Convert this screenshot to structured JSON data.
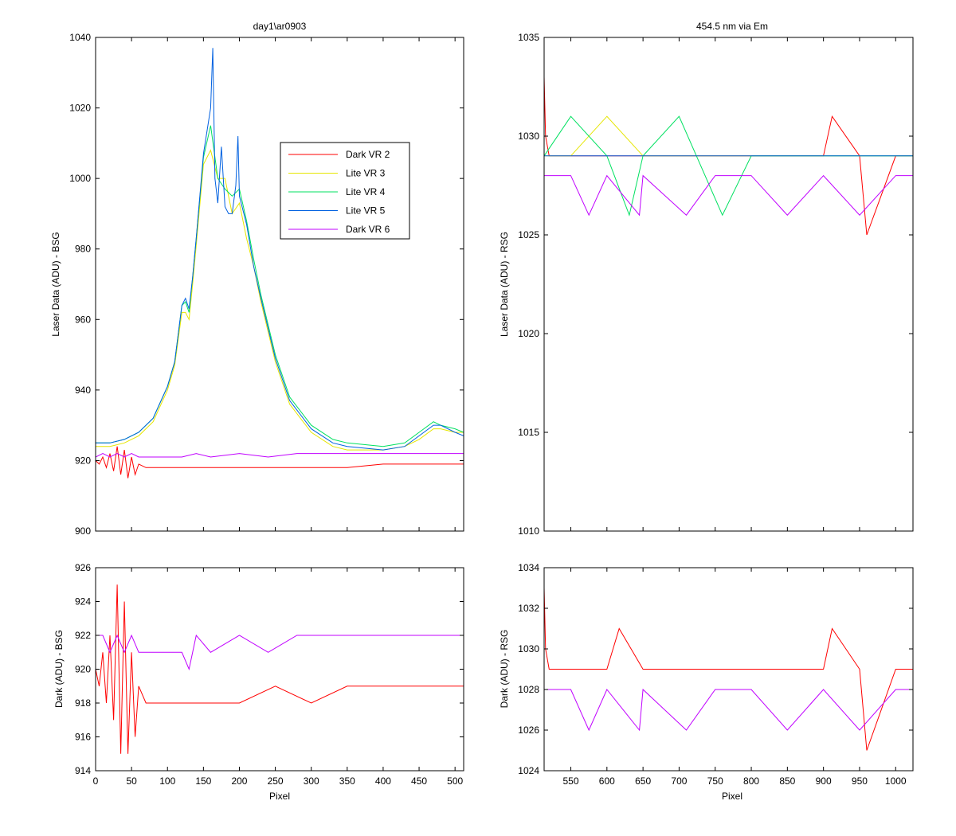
{
  "chart_data": [
    {
      "id": "top_left",
      "type": "line",
      "title": "day1\\ar0903",
      "xlabel": "",
      "ylabel": "Laser Data (ADU) - BSG",
      "xlim": [
        0,
        512
      ],
      "ylim": [
        900,
        1040
      ],
      "xticks": [
        0,
        50,
        100,
        150,
        200,
        250,
        300,
        350,
        400,
        450,
        500
      ],
      "xtick_labels_shown": false,
      "yticks": [
        900,
        920,
        940,
        960,
        980,
        1000,
        1020,
        1040
      ],
      "grid": false,
      "legend": {
        "placement": "upper-middle-right",
        "entries": [
          "Dark VR 2",
          "Lite VR 3",
          "Lite VR 4",
          "Lite VR 5",
          "Dark VR 6"
        ]
      },
      "series": [
        {
          "name": "Dark VR 2",
          "color": "#ff0000",
          "x": [
            0,
            5,
            10,
            15,
            20,
            25,
            30,
            35,
            40,
            45,
            50,
            55,
            60,
            70,
            80,
            100,
            150,
            200,
            250,
            300,
            350,
            400,
            450,
            500,
            512
          ],
          "y": [
            920,
            919,
            921,
            918,
            922,
            917,
            924,
            916,
            923,
            915,
            921,
            916,
            919,
            918,
            918,
            918,
            918,
            918,
            918,
            918,
            918,
            919,
            919,
            919,
            919
          ]
        },
        {
          "name": "Lite VR 3",
          "color": "#e6e600",
          "x": [
            0,
            20,
            40,
            60,
            80,
            100,
            110,
            120,
            125,
            130,
            135,
            140,
            150,
            160,
            170,
            180,
            190,
            200,
            210,
            220,
            230,
            250,
            270,
            300,
            330,
            350,
            400,
            430,
            450,
            470,
            480,
            500,
            512
          ],
          "y": [
            924,
            924,
            925,
            927,
            931,
            940,
            947,
            962,
            962,
            960,
            970,
            981,
            1004,
            1008,
            1000,
            1000,
            990,
            993,
            983,
            975,
            965,
            948,
            936,
            928,
            924,
            923,
            923,
            924,
            926,
            929,
            929,
            928,
            928
          ]
        },
        {
          "name": "Lite VR 4",
          "color": "#00e060",
          "x": [
            0,
            20,
            40,
            60,
            80,
            100,
            110,
            120,
            125,
            130,
            135,
            140,
            150,
            160,
            170,
            180,
            190,
            200,
            210,
            220,
            230,
            250,
            270,
            300,
            330,
            350,
            400,
            430,
            450,
            470,
            480,
            500,
            512
          ],
          "y": [
            925,
            925,
            926,
            928,
            932,
            941,
            948,
            964,
            965,
            962,
            972,
            983,
            1006,
            1015,
            1000,
            997,
            995,
            997,
            988,
            977,
            967,
            950,
            938,
            930,
            926,
            925,
            924,
            925,
            928,
            931,
            930,
            929,
            928
          ]
        },
        {
          "name": "Lite VR 5",
          "color": "#0060e0",
          "x": [
            0,
            20,
            40,
            60,
            80,
            100,
            110,
            120,
            125,
            130,
            135,
            140,
            150,
            160,
            163,
            166,
            170,
            175,
            180,
            185,
            190,
            195,
            198,
            200,
            210,
            220,
            230,
            250,
            270,
            300,
            330,
            350,
            400,
            430,
            450,
            470,
            480,
            500,
            512
          ],
          "y": [
            925,
            925,
            926,
            928,
            932,
            941,
            948,
            964,
            966,
            963,
            972,
            983,
            1007,
            1020,
            1037,
            1000,
            993,
            1009,
            992,
            990,
            990,
            998,
            1012,
            995,
            987,
            975,
            966,
            949,
            937,
            929,
            925,
            924,
            923,
            924,
            927,
            930,
            930,
            928,
            927
          ]
        },
        {
          "name": "Dark VR 6",
          "color": "#c000ff",
          "x": [
            0,
            10,
            20,
            30,
            40,
            50,
            60,
            80,
            100,
            120,
            140,
            160,
            200,
            240,
            280,
            320,
            360,
            400,
            440,
            470,
            500,
            512
          ],
          "y": [
            921,
            922,
            921,
            922,
            921,
            922,
            921,
            921,
            921,
            921,
            922,
            921,
            922,
            921,
            922,
            922,
            922,
            922,
            922,
            922,
            922,
            922
          ]
        }
      ]
    },
    {
      "id": "top_right",
      "type": "line",
      "title": "454.5 nm via Em",
      "xlabel": "",
      "ylabel": "Laser Data (ADU) - RSG",
      "xlim": [
        513,
        1024
      ],
      "ylim": [
        1010,
        1035
      ],
      "xticks": [
        550,
        600,
        650,
        700,
        750,
        800,
        850,
        900,
        950,
        1000
      ],
      "xtick_labels_shown": false,
      "yticks": [
        1010,
        1015,
        1020,
        1025,
        1030,
        1035
      ],
      "grid": false,
      "series": [
        {
          "name": "Dark VR 2",
          "color": "#ff0000",
          "x": [
            513,
            515,
            520,
            560,
            600,
            650,
            700,
            750,
            800,
            850,
            900,
            912,
            950,
            960,
            1000,
            1024
          ],
          "y": [
            1033,
            1030,
            1029,
            1029,
            1029,
            1029,
            1029,
            1029,
            1029,
            1029,
            1029,
            1031,
            1029,
            1025,
            1029,
            1029
          ]
        },
        {
          "name": "Lite VR 3",
          "color": "#e6e600",
          "x": [
            513,
            550,
            600,
            650,
            700,
            750,
            800,
            850,
            900,
            950,
            1000,
            1024
          ],
          "y": [
            1029,
            1029,
            1031,
            1029,
            1029,
            1029,
            1029,
            1029,
            1029,
            1029,
            1029,
            1029
          ]
        },
        {
          "name": "Lite VR 4",
          "color": "#00e060",
          "x": [
            513,
            550,
            600,
            631,
            650,
            700,
            760,
            800,
            850,
            900,
            950,
            1000,
            1024
          ],
          "y": [
            1029,
            1031,
            1029,
            1026,
            1029,
            1031,
            1026,
            1029,
            1029,
            1029,
            1029,
            1029,
            1029
          ]
        },
        {
          "name": "Lite VR 5",
          "color": "#0060e0",
          "x": [
            513,
            550,
            600,
            650,
            700,
            750,
            800,
            850,
            900,
            950,
            1000,
            1024
          ],
          "y": [
            1029,
            1029,
            1029,
            1029,
            1029,
            1029,
            1029,
            1029,
            1029,
            1029,
            1029,
            1029
          ]
        },
        {
          "name": "Dark VR 6",
          "color": "#c000ff",
          "x": [
            513,
            550,
            575,
            600,
            645,
            650,
            710,
            750,
            800,
            850,
            900,
            950,
            1000,
            1024
          ],
          "y": [
            1028,
            1028,
            1026,
            1028,
            1026,
            1028,
            1026,
            1028,
            1028,
            1026,
            1028,
            1026,
            1028,
            1028
          ]
        }
      ]
    },
    {
      "id": "bottom_left",
      "type": "line",
      "title": "",
      "xlabel": "Pixel",
      "ylabel": "Dark (ADU) - BSG",
      "xlim": [
        0,
        512
      ],
      "ylim": [
        914,
        926
      ],
      "xticks": [
        0,
        50,
        100,
        150,
        200,
        250,
        300,
        350,
        400,
        450,
        500
      ],
      "yticks": [
        914,
        916,
        918,
        920,
        922,
        924,
        926
      ],
      "grid": false,
      "series": [
        {
          "name": "Dark VR 2",
          "color": "#ff0000",
          "x": [
            0,
            5,
            10,
            15,
            20,
            25,
            30,
            35,
            40,
            45,
            50,
            55,
            60,
            70,
            80,
            100,
            150,
            200,
            250,
            300,
            350,
            400,
            450,
            480,
            500,
            512
          ],
          "y": [
            920,
            919,
            921,
            918,
            922,
            917,
            925,
            915,
            924,
            915,
            921,
            916,
            919,
            918,
            918,
            918,
            918,
            918,
            919,
            918,
            919,
            919,
            919,
            919,
            919,
            919
          ]
        },
        {
          "name": "Dark VR 6",
          "color": "#c000ff",
          "x": [
            0,
            10,
            20,
            30,
            40,
            50,
            60,
            80,
            100,
            120,
            130,
            140,
            160,
            200,
            240,
            280,
            320,
            360,
            400,
            440,
            470,
            500,
            512
          ],
          "y": [
            922,
            922,
            921,
            922,
            921,
            922,
            921,
            921,
            921,
            921,
            920,
            922,
            921,
            922,
            921,
            922,
            922,
            922,
            922,
            922,
            922,
            922,
            922
          ]
        }
      ]
    },
    {
      "id": "bottom_right",
      "type": "line",
      "title": "",
      "xlabel": "Pixel",
      "ylabel": "Dark (ADU) - RSG",
      "xlim": [
        513,
        1024
      ],
      "ylim": [
        1024,
        1034
      ],
      "xticks": [
        550,
        600,
        650,
        700,
        750,
        800,
        850,
        900,
        950,
        1000
      ],
      "yticks": [
        1024,
        1026,
        1028,
        1030,
        1032,
        1034
      ],
      "grid": false,
      "series": [
        {
          "name": "Dark VR 2",
          "color": "#ff0000",
          "x": [
            513,
            515,
            520,
            560,
            600,
            617,
            650,
            700,
            750,
            800,
            850,
            900,
            912,
            950,
            960,
            1000,
            1024
          ],
          "y": [
            1033,
            1030,
            1029,
            1029,
            1029,
            1031,
            1029,
            1029,
            1029,
            1029,
            1029,
            1029,
            1031,
            1029,
            1025,
            1029,
            1029
          ]
        },
        {
          "name": "Dark VR 6",
          "color": "#c000ff",
          "x": [
            513,
            550,
            575,
            600,
            645,
            650,
            710,
            750,
            800,
            850,
            900,
            950,
            1000,
            1024
          ],
          "y": [
            1028,
            1028,
            1026,
            1028,
            1026,
            1028,
            1026,
            1028,
            1028,
            1026,
            1028,
            1026,
            1028,
            1028
          ]
        }
      ]
    }
  ]
}
